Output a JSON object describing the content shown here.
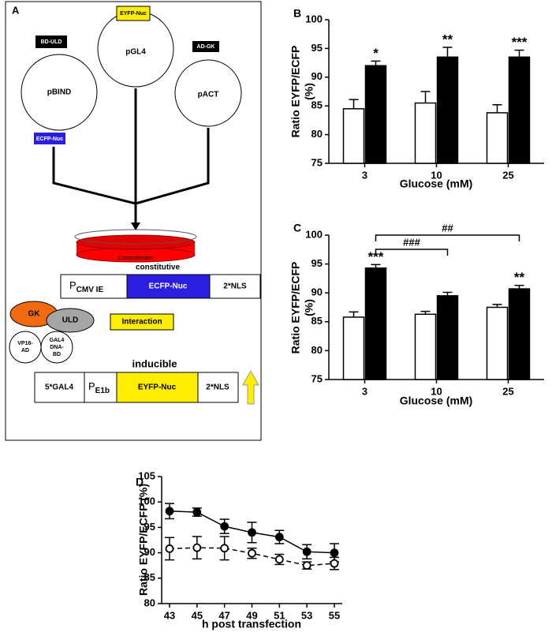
{
  "diagram": {
    "panel": "A",
    "plasmids": [
      {
        "name": "pBIND",
        "tags": [
          "BD-ULD",
          "ECFP-Nuc"
        ]
      },
      {
        "name": "pGL4",
        "tags": [
          "EYFP-Nuc"
        ]
      },
      {
        "name": "pACT",
        "tags": [
          "AD-GK"
        ]
      }
    ],
    "dish": "Cotransfection",
    "constitutive": {
      "title": "constitutive",
      "promoter": {
        "main": "P",
        "sub": "CMV IE"
      },
      "reporter": "ECFP-Nuc",
      "tail": "2*NLS"
    },
    "proteins": {
      "gk": "GK",
      "uld": "ULD",
      "vp16": [
        "VP16-",
        "AD"
      ],
      "gal4": [
        "GAL4",
        "DNA-",
        "BD"
      ]
    },
    "interaction": "Interaction",
    "inducible": {
      "title": "inducible",
      "start": "5*GAL4",
      "promoter": {
        "main": "P",
        "sub": "E1b"
      },
      "reporter": "EYFP-Nuc",
      "tail": "2*NLS"
    }
  },
  "chart_data": [
    {
      "type": "bar",
      "panel": "B",
      "ylabel": [
        "Ratio EYFP/ECFP",
        "(%)"
      ],
      "xlabel": "Glucose (mM)",
      "categories": [
        "3",
        "10",
        "25"
      ],
      "series": [
        {
          "color": "#ffffff",
          "values": [
            84.5,
            85.5,
            83.8
          ],
          "errors": [
            1.6,
            2.0,
            1.4
          ]
        },
        {
          "color": "#000000",
          "values": [
            92.0,
            93.5,
            93.5
          ],
          "errors": [
            0.8,
            1.7,
            1.2
          ]
        }
      ],
      "ylim": [
        75,
        100
      ],
      "yticks": [
        75,
        80,
        85,
        90,
        95,
        100
      ],
      "annotations": [
        {
          "text": "*",
          "series": 1,
          "category": 0
        },
        {
          "text": "**",
          "series": 1,
          "category": 1
        },
        {
          "text": "***",
          "series": 1,
          "category": 2
        }
      ]
    },
    {
      "type": "bar",
      "panel": "C",
      "ylabel": [
        "Ratio EYFP/ECFP",
        "(%)"
      ],
      "xlabel": "Glucose (mM)",
      "categories": [
        "3",
        "10",
        "25"
      ],
      "series": [
        {
          "color": "#ffffff",
          "values": [
            85.8,
            86.3,
            87.5
          ],
          "errors": [
            0.9,
            0.5,
            0.5
          ]
        },
        {
          "color": "#000000",
          "values": [
            94.3,
            89.5,
            90.7
          ],
          "errors": [
            0.6,
            0.6,
            0.6
          ]
        }
      ],
      "ylim": [
        75,
        100
      ],
      "yticks": [
        75,
        80,
        85,
        90,
        95,
        100
      ],
      "annotations": [
        {
          "text": "***",
          "series": 1,
          "category": 0
        },
        {
          "text": "**",
          "series": 1,
          "category": 2
        }
      ],
      "brackets": [
        {
          "text": "###",
          "series": 1,
          "from": 0,
          "to": 1
        },
        {
          "text": "##",
          "series": 1,
          "from": 0,
          "to": 2
        }
      ]
    },
    {
      "type": "line",
      "panel": "D",
      "ylabel": "Ratio EYFP/ECFP (%)",
      "xlabel": "h post transfection",
      "x": [
        43,
        45,
        47,
        49,
        51,
        53,
        55
      ],
      "series": [
        {
          "color": "#000000",
          "marker": "filled",
          "dashed": false,
          "values": [
            98.2,
            98.0,
            95.2,
            94.0,
            93.1,
            90.2,
            90.0
          ],
          "errors": [
            1.5,
            0.8,
            1.4,
            2.0,
            1.3,
            1.4,
            1.8
          ]
        },
        {
          "color": "#000000",
          "marker": "open",
          "dashed": true,
          "values": [
            90.8,
            91.0,
            90.9,
            89.9,
            88.7,
            87.5,
            87.9
          ],
          "errors": [
            2.2,
            2.2,
            2.3,
            1.0,
            1.0,
            0.7,
            1.2
          ]
        }
      ],
      "xlim": [
        43,
        55
      ],
      "xticks": [
        43,
        45,
        47,
        49,
        51,
        53,
        55
      ],
      "ylim": [
        80,
        105
      ],
      "yticks": [
        80,
        85,
        90,
        95,
        100,
        105
      ]
    }
  ]
}
